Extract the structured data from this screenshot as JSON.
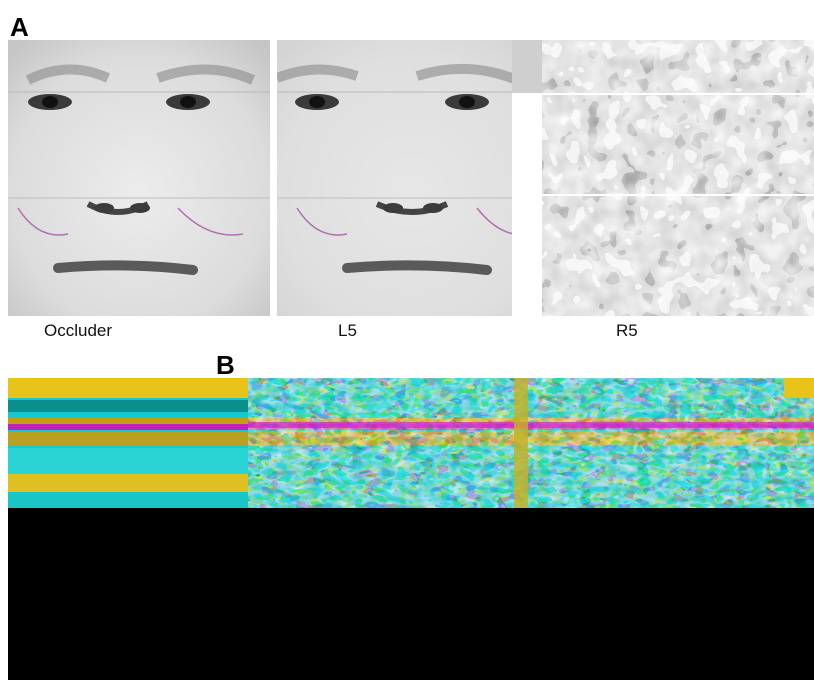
{
  "panel_a": {
    "letter": "A",
    "captions": {
      "occluder": "Occluder",
      "l5": "L5",
      "r5": "R5"
    }
  },
  "panel_b": {
    "letter": "B"
  }
}
